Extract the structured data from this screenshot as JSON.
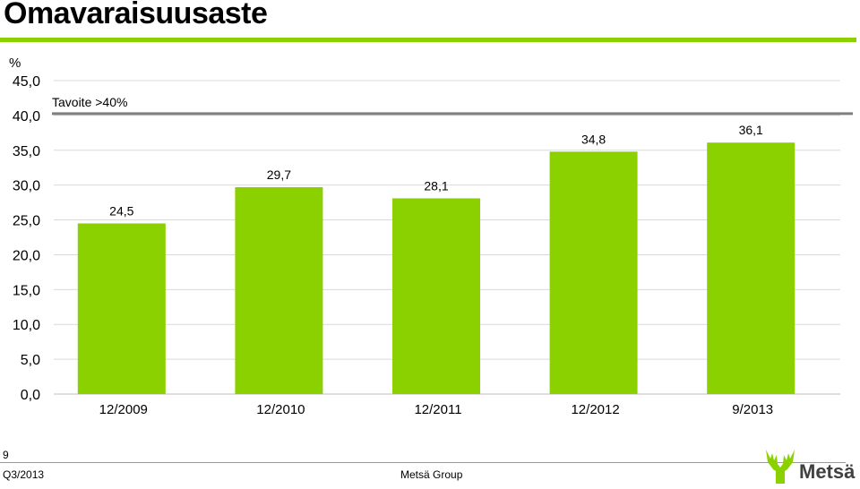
{
  "page": {
    "title": "Omavaraisuusaste",
    "page_number": "9",
    "footer_left": "Q3/2013",
    "footer_center": "Metsä Group",
    "logo_text": "Metsä",
    "accent_color": "#8bd100"
  },
  "chart_data": {
    "type": "bar",
    "title": "",
    "ylabel": "%",
    "xlabel": "",
    "categories": [
      "12/2009",
      "12/2010",
      "12/2011",
      "12/2012",
      "9/2013"
    ],
    "values": [
      24.5,
      29.7,
      28.1,
      34.8,
      36.1
    ],
    "value_labels": [
      "24,5",
      "29,7",
      "28,1",
      "34,8",
      "36,1"
    ],
    "ylim": [
      0,
      45
    ],
    "yticks": [
      "0,0",
      "5,0",
      "10,0",
      "15,0",
      "20,0",
      "25,0",
      "30,0",
      "35,0",
      "40,0",
      "45,0"
    ],
    "bar_color": "#8bd100",
    "grid": true,
    "target": {
      "label": "Tavoite >40%",
      "value": 40,
      "color": "#7f7f7f"
    }
  }
}
